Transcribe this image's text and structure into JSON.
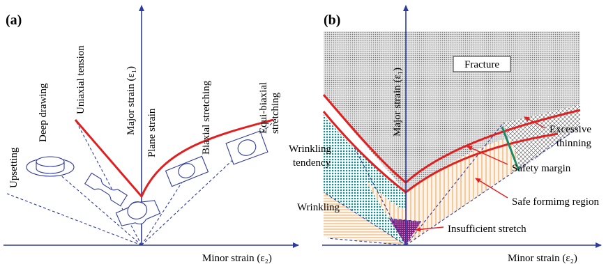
{
  "panel_a": {
    "label": "(a)",
    "y_axis": "Major strain (ε₁)",
    "x_axis": "Minor strain (ε₂)",
    "paths": {
      "upsetting": "Upsetting",
      "deep_drawing": "Deep drawing",
      "uniaxial_tension": "Uniaxial tension",
      "plane_strain": "Plane strain",
      "biaxial_stretching": "Biaxial stretching",
      "equi_biaxial": "Equi-biaxial stretching"
    }
  },
  "panel_b": {
    "label": "(b)",
    "y_axis": "Major strain (ε₁)",
    "x_axis": "Minor strain (ε₂)",
    "regions": {
      "fracture": "Fracture",
      "excessive_thinning": "Excessive thinning",
      "safety_margin": "Safety margin",
      "safe_forming": "Safe formimg region",
      "wrinkling_tendency": "Wrinkling tendency",
      "wrinkling": "Wrinkling",
      "insufficient_stretch": "Insufficient stretch"
    }
  },
  "colors": {
    "axis": "#2e3a9e",
    "curve": "#e02020",
    "fracture_fill": "#c8c8c8",
    "wrinkling_tendency": "#1e8a8a",
    "safe_region": "#e8a050",
    "insufficient": "#7a1a7a",
    "thinning_boundary": "#1a8a6a"
  }
}
